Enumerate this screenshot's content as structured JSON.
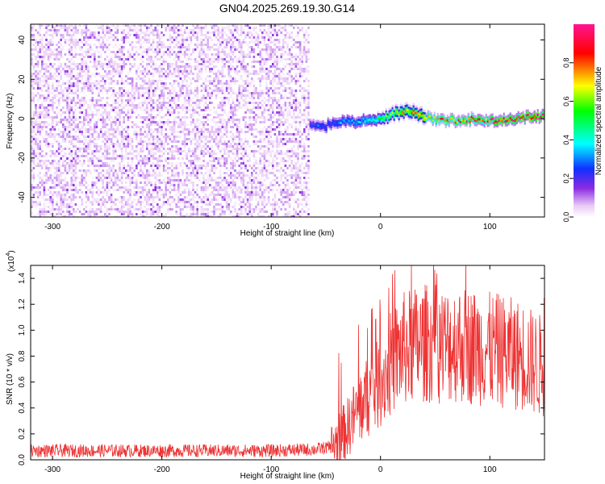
{
  "title": "GN04.2025.269.19.30.G14",
  "colors": {
    "snr_line": "#ee3333",
    "colormap": [
      "#ffffff",
      "#e8c8f6",
      "#8a2be2",
      "#1030ff",
      "#00ffff",
      "#00ff00",
      "#ffff00",
      "#ff0000",
      "#ff1493"
    ]
  },
  "chart_data": [
    {
      "type": "heatmap",
      "title": "GN04.2025.269.19.30.G14",
      "xlabel": "Height of straight line (km)",
      "ylabel": "Frequency (Hz)",
      "xlim": [
        -320,
        150
      ],
      "ylim": [
        -50,
        48
      ],
      "xticks": [
        -300,
        -200,
        -100,
        0,
        100
      ],
      "yticks": [
        -40,
        -20,
        0,
        20,
        40
      ],
      "noise_band": {
        "x_range": [
          -320,
          -65
        ],
        "amplitude_range": [
          0.0,
          0.15
        ]
      },
      "signal_track": {
        "x": [
          -65,
          -55,
          -45,
          -35,
          -25,
          -15,
          -5,
          5,
          15,
          25,
          35,
          45,
          55,
          65,
          75,
          85,
          95,
          105,
          115,
          125,
          135,
          148
        ],
        "frequency_hz": [
          -3,
          -5,
          -2,
          -1,
          -2,
          -1,
          0,
          1,
          3,
          4,
          2,
          0,
          -1,
          -1,
          -1,
          0,
          -1,
          -1,
          -1,
          0,
          1,
          1
        ],
        "amplitude": [
          0.25,
          0.3,
          0.3,
          0.35,
          0.35,
          0.4,
          0.45,
          0.6,
          0.7,
          0.75,
          0.75,
          0.75,
          0.8,
          0.85,
          0.85,
          0.9,
          0.9,
          0.95,
          0.95,
          1.0,
          1.0,
          1.0
        ]
      },
      "colorbar": {
        "label": "Normalized spectral amplitude",
        "range": [
          0.0,
          1.0
        ],
        "ticks": [
          "0.0",
          "0.2",
          "0.4",
          "0.6",
          "0.8"
        ]
      }
    },
    {
      "type": "line",
      "xlabel": "Height of straight line (km)",
      "ylabel": "SNR (10 * v/v)",
      "multiplier": "(x10",
      "multiplier_exp": "4",
      "xlim": [
        -320,
        150
      ],
      "ylim": [
        0.0,
        1.5
      ],
      "xticks": [
        -300,
        -200,
        -100,
        0,
        100
      ],
      "yticks": [
        "0.0",
        "0.2",
        "0.4",
        "0.6",
        "0.8",
        "1.0",
        "1.2",
        "1.4"
      ],
      "series": [
        {
          "x": [
            -320,
            -300,
            -250,
            -200,
            -150,
            -100,
            -60,
            -45,
            -40,
            -30,
            -20,
            -10,
            0,
            10,
            20,
            30,
            40,
            50,
            60,
            70,
            80,
            90,
            100,
            110,
            120,
            130,
            140,
            148
          ],
          "y": [
            0.07,
            0.07,
            0.07,
            0.07,
            0.07,
            0.07,
            0.08,
            0.1,
            0.14,
            0.25,
            0.4,
            0.5,
            0.6,
            0.75,
            0.85,
            0.88,
            0.9,
            0.9,
            0.88,
            0.9,
            0.88,
            0.87,
            0.85,
            0.84,
            0.82,
            0.8,
            0.75,
            0.72
          ]
        }
      ]
    }
  ]
}
